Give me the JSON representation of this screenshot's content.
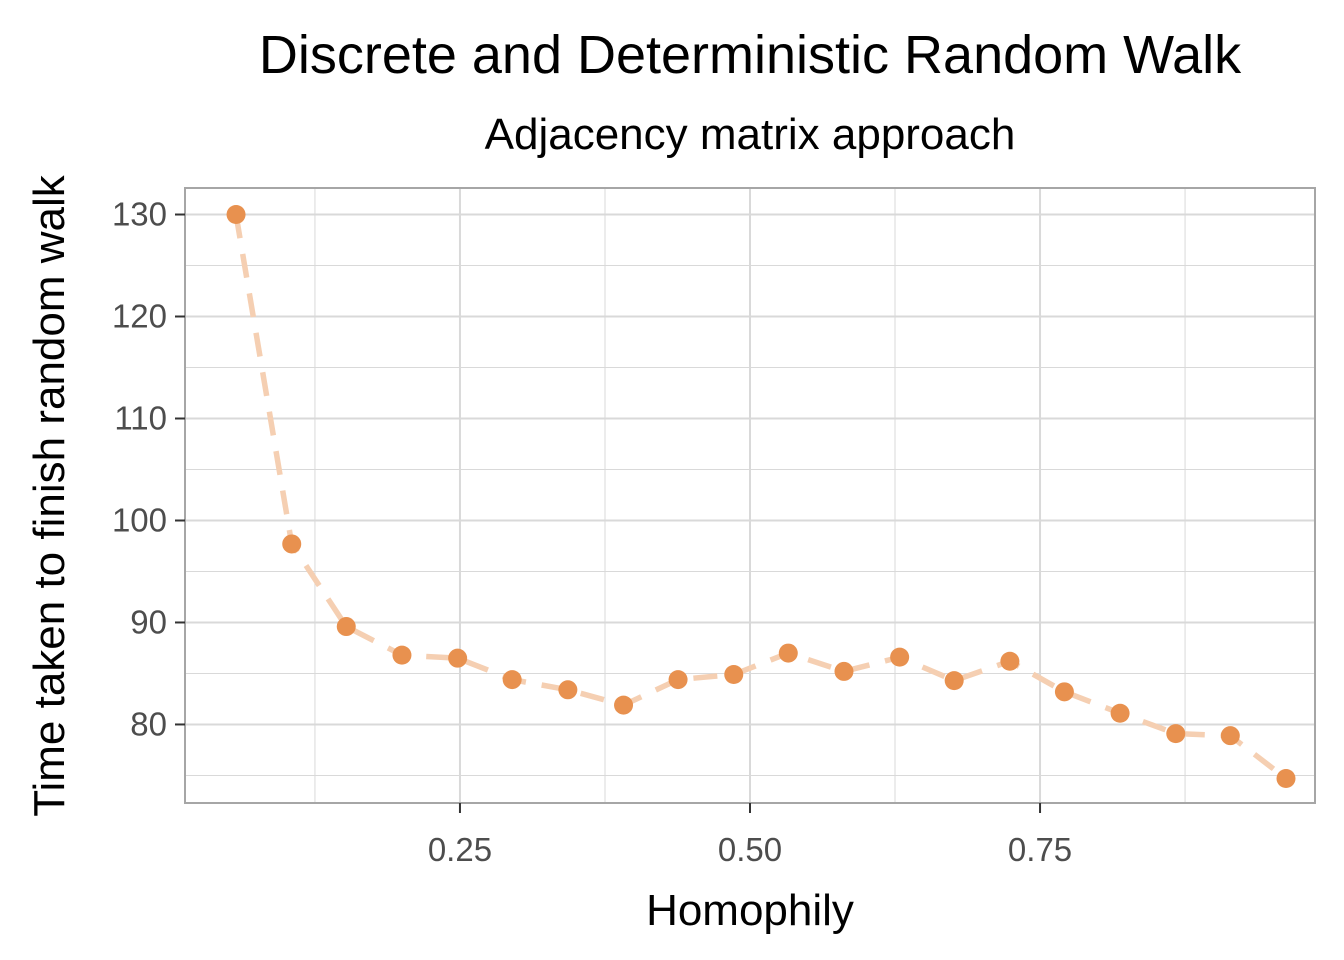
{
  "chart_data": {
    "type": "line",
    "title": "Discrete and Deterministic Random Walk",
    "subtitle": "Adjacency matrix approach",
    "xlabel": "Homophily",
    "ylabel": "Time taken to finish random walk",
    "xlim": [
      0.013,
      0.987
    ],
    "ylim": [
      72.3,
      132.6
    ],
    "x_ticks": [
      0.25,
      0.5,
      0.75
    ],
    "x_tick_labels": [
      "0.25",
      "0.50",
      "0.75"
    ],
    "x_minor_ticks": [
      0.125,
      0.375,
      0.625,
      0.875
    ],
    "y_ticks": [
      80,
      90,
      100,
      110,
      120,
      130
    ],
    "y_tick_labels": [
      "80",
      "90",
      "100",
      "110",
      "120",
      "130"
    ],
    "y_minor_ticks": [
      75,
      85,
      95,
      105,
      115,
      125
    ],
    "grid": true,
    "line_style": "dashed",
    "colors": {
      "point": "#E8914F",
      "line": "#F5CFB2",
      "grid": "#d9d9d9",
      "panel_border": "#a6a6a6"
    },
    "series": [
      {
        "x": [
          0.057,
          0.105,
          0.152,
          0.2,
          0.248,
          0.295,
          0.343,
          0.391,
          0.438,
          0.486,
          0.533,
          0.581,
          0.629,
          0.676,
          0.724,
          0.771,
          0.819,
          0.867,
          0.914,
          0.962
        ],
        "values": [
          130.0,
          97.7,
          89.6,
          86.8,
          86.5,
          84.4,
          83.4,
          81.9,
          84.4,
          84.9,
          87.0,
          85.2,
          86.6,
          84.3,
          86.2,
          83.2,
          81.1,
          79.1,
          78.9,
          74.7
        ]
      }
    ]
  }
}
